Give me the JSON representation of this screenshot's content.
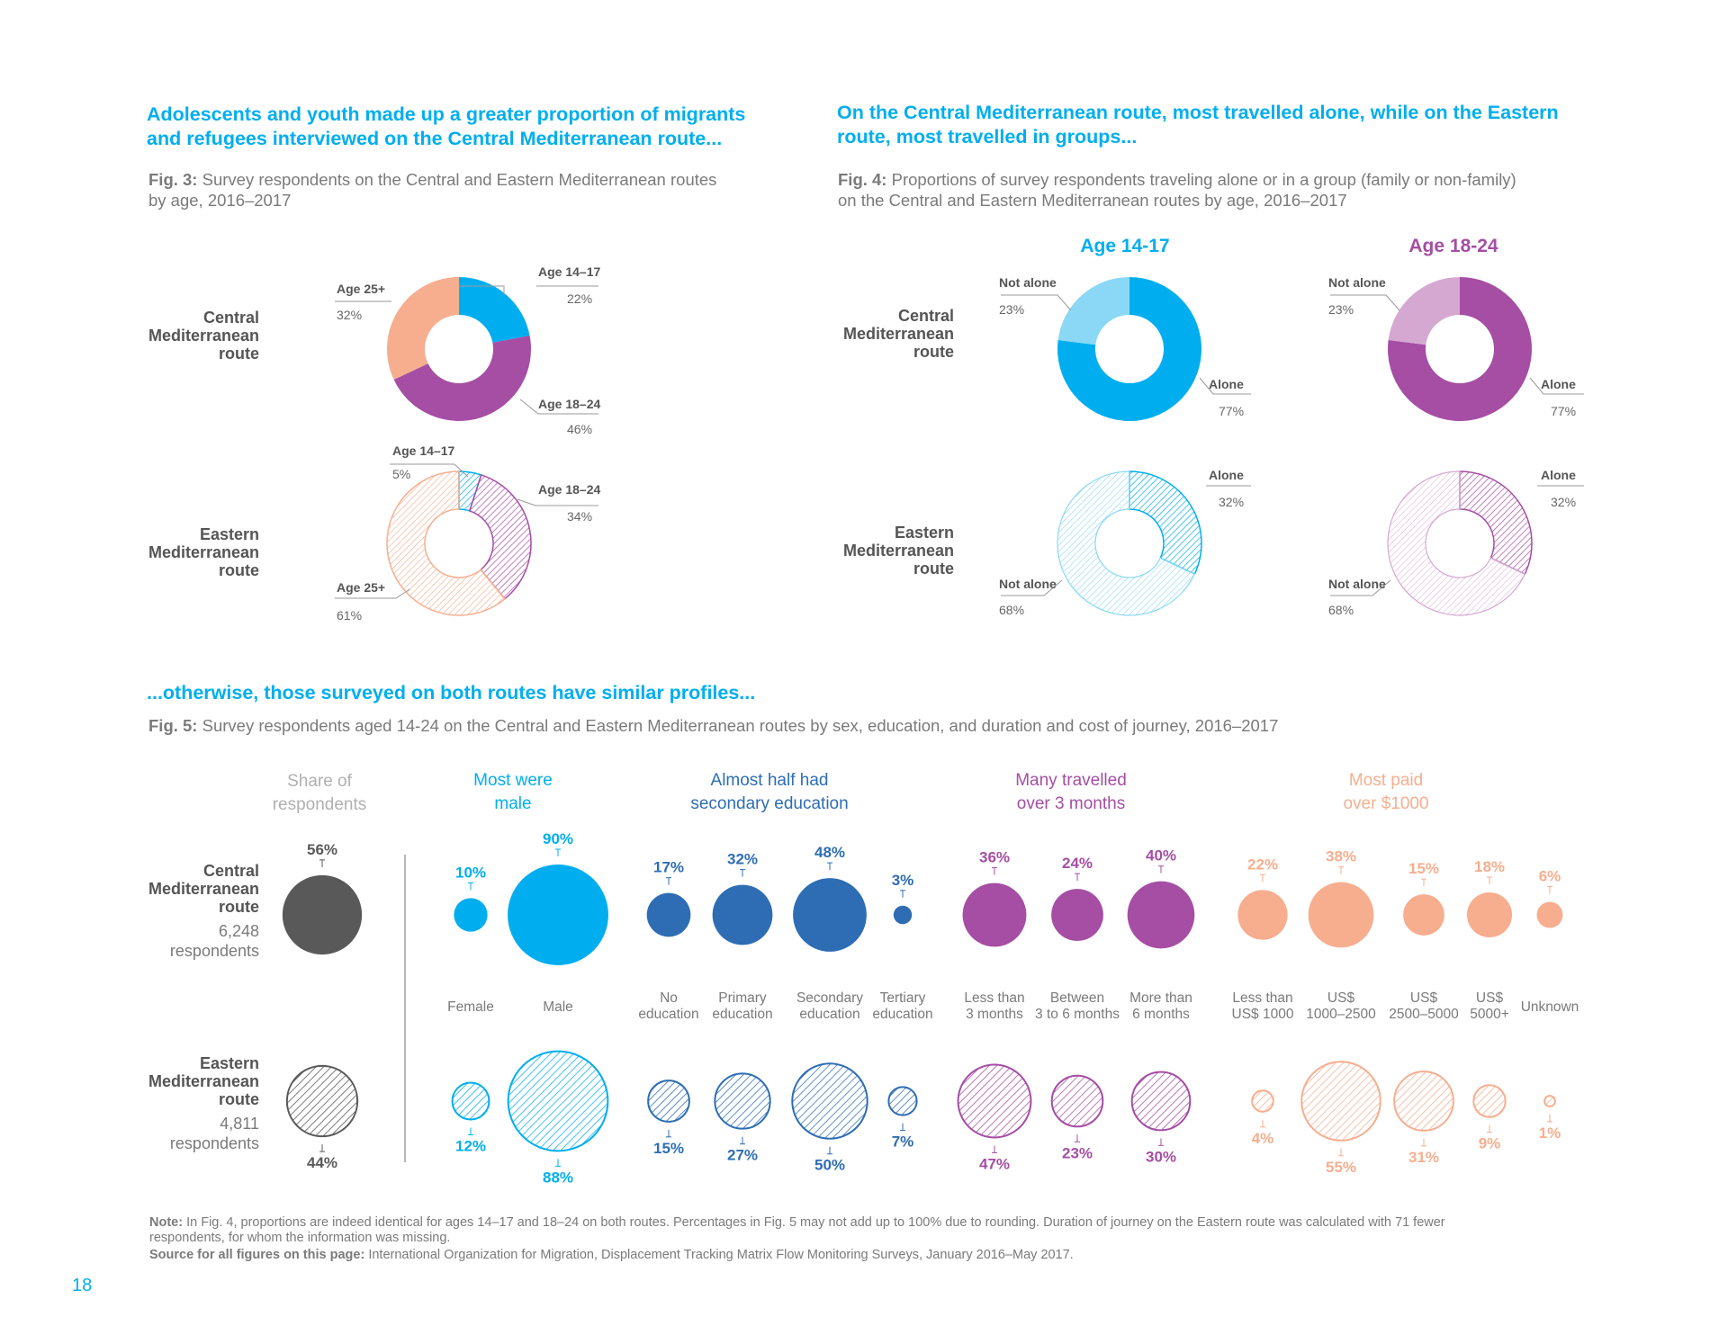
{
  "page_number": "18",
  "left_heading_1": "Adolescents and youth made up a greater proportion of migrants",
  "left_heading_2": "and refugees interviewed on the Central Mediterranean route...",
  "fig3_caption_label": "Fig. 3:",
  "fig3_caption_1": " Survey respondents on the Central and Eastern Mediterranean routes",
  "fig3_caption_2": "by age, 2016–2017",
  "right_heading_1": "On the Central Mediterranean route, most travelled alone, while on the Eastern",
  "right_heading_2": "route, most travelled in groups...",
  "fig4_caption_label": "Fig. 4:",
  "fig4_caption_1": " Proportions of survey respondents traveling alone or in a group (family or non-family)",
  "fig4_caption_2": "on the Central and Eastern Mediterranean routes by age, 2016–2017",
  "routes": {
    "central_1": "Central",
    "central_2": "Mediterranean",
    "central_3": "route",
    "eastern_1": "Eastern",
    "eastern_2": "Mediterranean",
    "eastern_3": "route"
  },
  "fig3_labels": {
    "c_age1417": "Age 14–17",
    "c_age1417_v": "22%",
    "c_age1824": "Age 18–24",
    "c_age1824_v": "46%",
    "c_age25": "Age 25+",
    "c_age25_v": "32%",
    "e_age1417": "Age 14–17",
    "e_age1417_v": "5%",
    "e_age1824": "Age 18–24",
    "e_age1824_v": "34%",
    "e_age25": "Age 25+",
    "e_age25_v": "61%"
  },
  "fig4_labels": {
    "age1417_title": "Age 14-17",
    "age1824_title": "Age 18-24",
    "a_c_notalone": "Not alone",
    "a_c_notalone_v": "23%",
    "a_c_alone": "Alone",
    "a_c_alone_v": "77%",
    "a_e_alone": "Alone",
    "a_e_alone_v": "32%",
    "a_e_notalone": "Not alone",
    "a_e_notalone_v": "68%",
    "b_c_notalone": "Not alone",
    "b_c_notalone_v": "23%",
    "b_c_alone": "Alone",
    "b_c_alone_v": "77%",
    "b_e_alone": "Alone",
    "b_e_alone_v": "32%",
    "b_e_notalone": "Not alone",
    "b_e_notalone_v": "68%"
  },
  "fig5_heading": "...otherwise, those surveyed on both routes have similar profiles...",
  "fig5_caption_label": "Fig. 5:",
  "fig5_caption": " Survey respondents aged 14-24 on the Central and Eastern Mediterranean routes by sex, education, and duration and cost of journey, 2016–2017",
  "fig5_routes": {
    "central_count": "6,248",
    "central_resp": "respondents",
    "eastern_count": "4,811",
    "eastern_resp": "respondents"
  },
  "fig5_groups": {
    "share_1": "Share of",
    "share_2": "respondents",
    "sex_1": "Most were",
    "sex_2": "male",
    "edu_1": "Almost half had",
    "edu_2": "secondary education",
    "dur_1": "Many travelled",
    "dur_2": "over 3 months",
    "cost_1": "Most paid",
    "cost_2": "over $1000"
  },
  "note_label": "Note:",
  "note_1": " In Fig. 4, proportions are indeed identical for ages 14–17 and 18–24 on both routes. Percentages in Fig. 5 may not add up to 100% due to rounding. Duration of journey on the Eastern route was calculated with 71 fewer",
  "note_2": "respondents, for whom the information was missing.",
  "source_label": "Source for all figures on this page:",
  "source_text": " International Organization for Migration, Displacement Tracking Matrix Flow Monitoring Surveys, January 2016–May 2017.",
  "colors": {
    "cyan": "#00aeef",
    "light_cyan": "#8ad8f5",
    "purple": "#a54ea4",
    "light_purple": "#d5a8d1",
    "salmon": "#f6ae8f",
    "dark_gray": "#595959",
    "navy": "#2e6db4"
  },
  "chart_data": [
    {
      "type": "pie",
      "title": "Fig. 3 Central Mediterranean route",
      "categories": [
        "Age 14–17",
        "Age 18–24",
        "Age 25+"
      ],
      "values": [
        22,
        46,
        32
      ]
    },
    {
      "type": "pie",
      "title": "Fig. 3 Eastern Mediterranean route",
      "categories": [
        "Age 14–17",
        "Age 18–24",
        "Age 25+"
      ],
      "values": [
        5,
        34,
        61
      ]
    },
    {
      "type": "pie",
      "title": "Fig. 4 Age 14-17",
      "series": [
        {
          "name": "Central Mediterranean route",
          "categories": [
            "Alone",
            "Not alone"
          ],
          "values": [
            77,
            23
          ]
        },
        {
          "name": "Eastern Mediterranean route",
          "categories": [
            "Alone",
            "Not alone"
          ],
          "values": [
            32,
            68
          ]
        }
      ]
    },
    {
      "type": "pie",
      "title": "Fig. 4 Age 18-24",
      "series": [
        {
          "name": "Central Mediterranean route",
          "categories": [
            "Alone",
            "Not alone"
          ],
          "values": [
            77,
            23
          ]
        },
        {
          "name": "Eastern Mediterranean route",
          "categories": [
            "Alone",
            "Not alone"
          ],
          "values": [
            32,
            68
          ]
        }
      ]
    },
    {
      "type": "scatter",
      "title": "Fig. 5 bubbles",
      "categories": [
        "Share of respondents",
        "Female",
        "Male",
        "No education",
        "Primary education",
        "Secondary education",
        "Tertiary education",
        "Less than 3 months",
        "Between 3 to 6 months",
        "More than 6 months",
        "Less than US$ 1000",
        "US$ 1000–2500",
        "US$ 2500–5000",
        "US$ 5000+",
        "Unknown"
      ],
      "series": [
        {
          "name": "Central Mediterranean route",
          "values": [
            56,
            10,
            90,
            17,
            32,
            48,
            3,
            36,
            24,
            40,
            22,
            38,
            15,
            18,
            6
          ]
        },
        {
          "name": "Eastern Mediterranean route",
          "values": [
            44,
            12,
            88,
            15,
            27,
            50,
            7,
            47,
            23,
            30,
            4,
            55,
            31,
            9,
            1
          ]
        }
      ]
    }
  ]
}
